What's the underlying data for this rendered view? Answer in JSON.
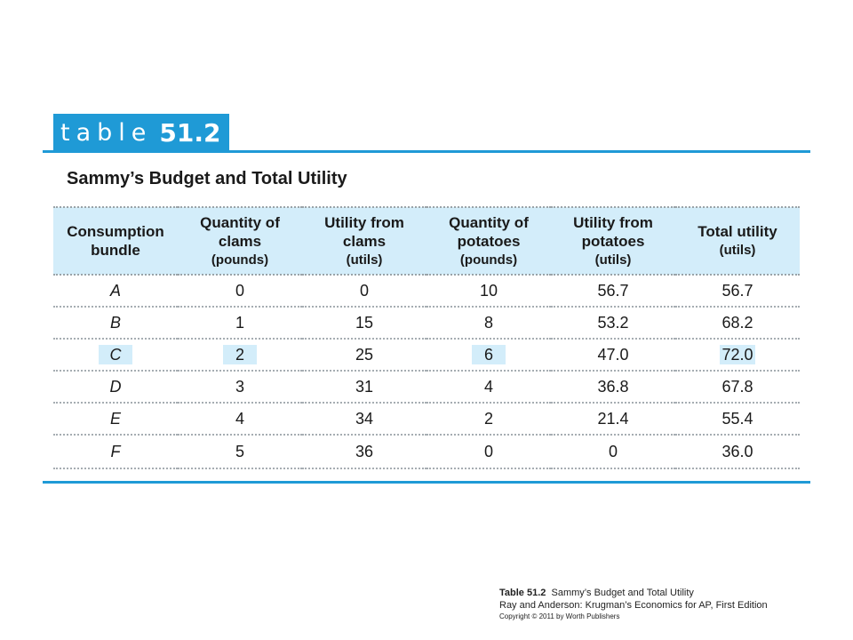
{
  "tag": {
    "word": "table",
    "number": "51.2"
  },
  "title": "Sammy’s Budget and Total Utility",
  "table": {
    "headers": [
      {
        "text": "Consumption bundle",
        "unit": ""
      },
      {
        "text": "Quantity of clams",
        "unit": "(pounds)"
      },
      {
        "text": "Utility from clams",
        "unit": "(utils)"
      },
      {
        "text": "Quantity of potatoes",
        "unit": "(pounds)"
      },
      {
        "text": "Utility from potatoes",
        "unit": "(utils)"
      },
      {
        "text": "Total utility",
        "unit": "(utils)"
      }
    ],
    "rows": [
      [
        "A",
        "0",
        "0",
        "10",
        "56.7",
        "56.7"
      ],
      [
        "B",
        "1",
        "15",
        "8",
        "53.2",
        "68.2"
      ],
      [
        "C",
        "2",
        "25",
        "6",
        "47.0",
        "72.0"
      ],
      [
        "D",
        "3",
        "31",
        "4",
        "36.8",
        "67.8"
      ],
      [
        "E",
        "4",
        "34",
        "2",
        "21.4",
        "55.4"
      ],
      [
        "F",
        "5",
        "36",
        "0",
        "0",
        "36.0"
      ]
    ],
    "highlight_row": 2,
    "highlight_cols": [
      0,
      1,
      3,
      5
    ]
  },
  "caption": {
    "label": "Table 51.2",
    "text": "Sammy’s Budget and Total Utility",
    "source": "Ray and Anderson: Krugman’s Economics for AP, First Edition",
    "copyright": "Copyright © 2011 by Worth Publishers"
  },
  "colors": {
    "accent": "#1f9ad6",
    "highlight": "#d3edfa"
  }
}
